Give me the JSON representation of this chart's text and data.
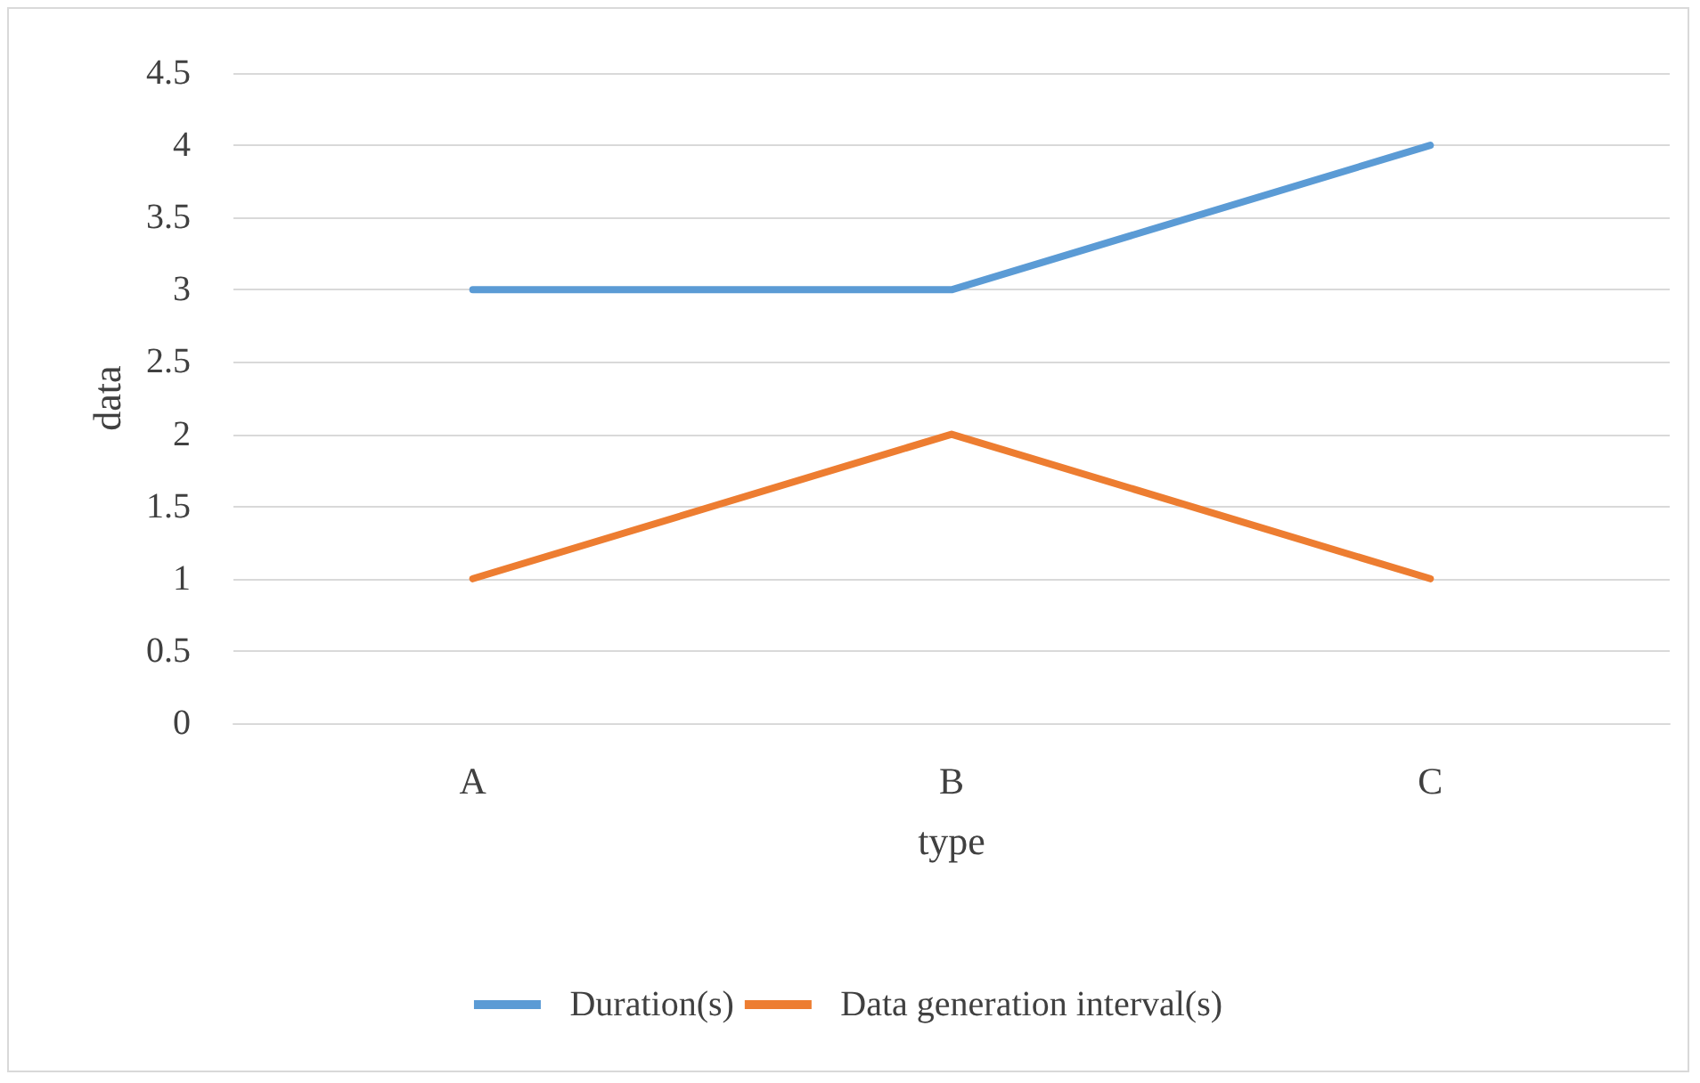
{
  "chart_data": {
    "type": "line",
    "xlabel": "type",
    "ylabel": "data",
    "categories": [
      "A",
      "B",
      "C"
    ],
    "series": [
      {
        "name": "Duration(s)",
        "color": "#5b9bd5",
        "values": [
          3,
          3,
          4
        ]
      },
      {
        "name": "Data generation interval(s)",
        "color": "#ed7d31",
        "values": [
          1,
          2,
          1
        ]
      }
    ],
    "ylim": [
      0,
      4.5
    ],
    "yticks": [
      0,
      0.5,
      1,
      1.5,
      2,
      2.5,
      3,
      3.5,
      4,
      4.5
    ],
    "grid": "y",
    "legend": "bottom",
    "marker": "none",
    "line_style": "solid"
  }
}
